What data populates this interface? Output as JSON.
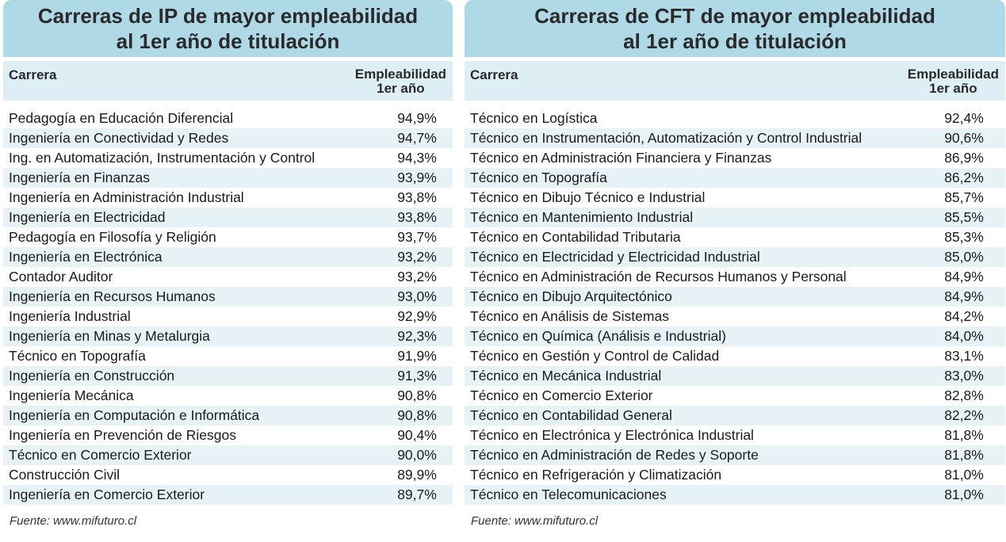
{
  "ip": {
    "title_line1": "Carreras de IP de mayor empleabilidad",
    "title_line2": "al 1er año de titulación",
    "col_career": "Carrera",
    "col_emp_line1": "Empleabilidad",
    "col_emp_line2": "1er año",
    "rows": [
      {
        "name": "Pedagogía en Educación Diferencial",
        "value": "94,9%"
      },
      {
        "name": "Ingeniería en Conectividad y Redes",
        "value": "94,7%"
      },
      {
        "name": "Ing. en Automatización, Instrumentación y Control",
        "value": "94,3%"
      },
      {
        "name": "Ingeniería en Finanzas",
        "value": "93,9%"
      },
      {
        "name": "Ingeniería en Administración Industrial",
        "value": "93,8%"
      },
      {
        "name": "Ingeniería en Electricidad",
        "value": "93,8%"
      },
      {
        "name": "Pedagogía en Filosofía y Religión",
        "value": "93,7%"
      },
      {
        "name": "Ingeniería en Electrónica",
        "value": "93,2%"
      },
      {
        "name": "Contador Auditor",
        "value": "93,2%"
      },
      {
        "name": "Ingeniería en Recursos Humanos",
        "value": "93,0%"
      },
      {
        "name": "Ingeniería Industrial",
        "value": "92,9%"
      },
      {
        "name": "Ingeniería en Minas y Metalurgia",
        "value": "92,3%"
      },
      {
        "name": "Técnico en Topografía",
        "value": "91,9%"
      },
      {
        "name": "Ingeniería en Construcción",
        "value": "91,3%"
      },
      {
        "name": "Ingeniería Mecánica",
        "value": "90,8%"
      },
      {
        "name": "Ingeniería en Computación e Informática",
        "value": "90,8%"
      },
      {
        "name": "Ingeniería en Prevención de Riesgos",
        "value": "90,4%"
      },
      {
        "name": "Técnico en Comercio Exterior",
        "value": "90,0%"
      },
      {
        "name": "Construcción Civil",
        "value": "89,9%"
      },
      {
        "name": "Ingeniería en Comercio Exterior",
        "value": "89,7%"
      }
    ],
    "source": "Fuente: www.mifuturo.cl"
  },
  "cft": {
    "title_line1": "Carreras de CFT de mayor empleabilidad",
    "title_line2": "al 1er año de titulación",
    "col_career": "Carrera",
    "col_emp_line1": "Empleabilidad",
    "col_emp_line2": "1er año",
    "rows": [
      {
        "name": "Técnico en Logística",
        "value": "92,4%"
      },
      {
        "name": "Técnico en Instrumentación, Automatización y Control Industrial",
        "value": "90,6%"
      },
      {
        "name": "Técnico en Administración Financiera y Finanzas",
        "value": "86,9%"
      },
      {
        "name": "Técnico en Topografía",
        "value": "86,2%"
      },
      {
        "name": "Técnico en Dibujo Técnico e Industrial",
        "value": "85,7%"
      },
      {
        "name": "Técnico en Mantenimiento Industrial",
        "value": "85,5%"
      },
      {
        "name": "Técnico en Contabilidad Tributaria",
        "value": "85,3%"
      },
      {
        "name": "Técnico en Electricidad y Electricidad Industrial",
        "value": "85,0%"
      },
      {
        "name": "Técnico en Administración de Recursos Humanos y Personal",
        "value": "84,9%"
      },
      {
        "name": "Técnico en Dibujo Arquitectónico",
        "value": "84,9%"
      },
      {
        "name": "Técnico en Análisis de Sistemas",
        "value": "84,2%"
      },
      {
        "name": "Técnico en Química (Análisis e Industrial)",
        "value": "84,0%"
      },
      {
        "name": "Técnico en Gestión y Control de Calidad",
        "value": "83,1%"
      },
      {
        "name": "Técnico en Mecánica Industrial",
        "value": "83,0%"
      },
      {
        "name": "Técnico en Comercio Exterior",
        "value": "82,8%"
      },
      {
        "name": "Técnico en Contabilidad General",
        "value": "82,2%"
      },
      {
        "name": "Técnico en Electrónica y Electrónica Industrial",
        "value": "81,8%"
      },
      {
        "name": "Técnico en Administración de Redes y Soporte",
        "value": "81,8%"
      },
      {
        "name": "Técnico en Refrigeración y Climatización",
        "value": "81,0%"
      },
      {
        "name": "Técnico en Telecomunicaciones",
        "value": "81,0%"
      }
    ],
    "source": "Fuente: www.mifuturo.cl"
  }
}
